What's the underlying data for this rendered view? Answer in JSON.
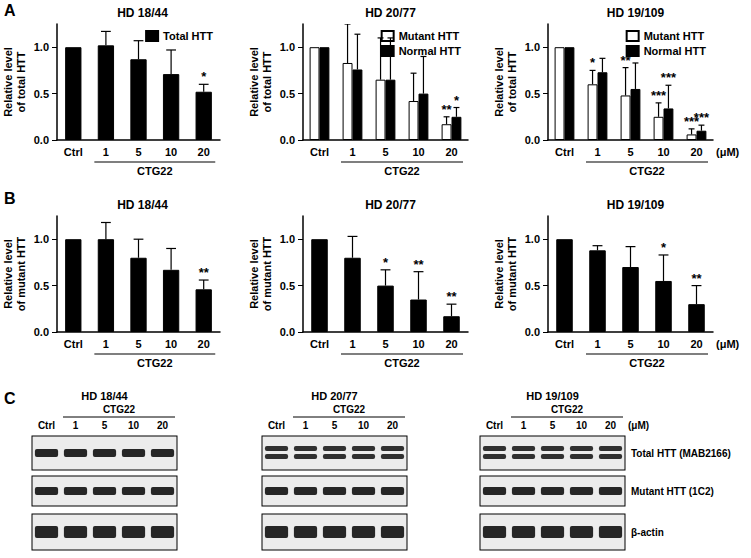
{
  "panel_labels": [
    "A",
    "B",
    "C"
  ],
  "chart_data": [
    {
      "type": "bar",
      "title": "HD 18/44",
      "ylabel": "Relative level\nof total HTT",
      "xlabel": "CTG22",
      "categories": [
        "Ctrl",
        "1",
        "5",
        "10",
        "20"
      ],
      "series": [
        {
          "name": "Total HTT",
          "color": "#000000",
          "values": [
            1.0,
            1.02,
            0.87,
            0.71,
            0.52
          ],
          "errors": [
            null,
            0.15,
            0.2,
            0.26,
            0.08
          ],
          "significance": [
            null,
            null,
            null,
            null,
            "*"
          ]
        }
      ],
      "ylim": [
        0,
        1.25
      ],
      "yticks": [
        {
          "value": 0,
          "label": "0.0"
        },
        {
          "value": 0.5,
          "label": "0.5"
        },
        {
          "value": 1,
          "label": "1.0"
        }
      ],
      "grid": false,
      "legend": "upper right"
    },
    {
      "type": "bar",
      "title": "HD 20/77",
      "ylabel": "Relative level\nof total HTT",
      "xlabel": "CTG22",
      "categories": [
        "Ctrl",
        "1",
        "5",
        "10",
        "20"
      ],
      "series": [
        {
          "name": "Mutant HTT",
          "color": "#ffffff",
          "values": [
            1.0,
            0.83,
            0.65,
            0.42,
            0.17
          ],
          "errors": [
            null,
            0.42,
            0.45,
            0.3,
            0.08
          ],
          "significance": [
            null,
            null,
            null,
            null,
            "**"
          ]
        },
        {
          "name": "Normal HTT",
          "color": "#000000",
          "values": [
            1.0,
            0.76,
            0.65,
            0.5,
            0.25
          ],
          "errors": [
            null,
            0.38,
            0.45,
            0.4,
            0.1
          ],
          "significance": [
            null,
            null,
            null,
            null,
            "*"
          ]
        }
      ],
      "ylim": [
        0,
        1.25
      ],
      "yticks": [
        {
          "value": 0,
          "label": "0.0"
        },
        {
          "value": 0.5,
          "label": "0.5"
        },
        {
          "value": 1,
          "label": "1.0"
        }
      ],
      "grid": false,
      "legend": "upper right"
    },
    {
      "type": "bar",
      "title": "HD 19/109",
      "ylabel": "Relative level\nof total HTT",
      "xlabel": "CTG22",
      "categories": [
        "Ctrl",
        "1",
        "5",
        "10",
        "20"
      ],
      "series": [
        {
          "name": "Mutant HTT",
          "color": "#ffffff",
          "values": [
            1.0,
            0.6,
            0.48,
            0.25,
            0.06
          ],
          "errors": [
            null,
            0.15,
            0.3,
            0.15,
            0.06
          ],
          "significance": [
            null,
            "*",
            "**",
            "***",
            "***"
          ]
        },
        {
          "name": "Normal HTT",
          "color": "#000000",
          "values": [
            1.0,
            0.73,
            0.55,
            0.34,
            0.1
          ],
          "errors": [
            null,
            0.15,
            0.28,
            0.25,
            0.06
          ],
          "significance": [
            null,
            null,
            "*",
            "***",
            "***"
          ]
        }
      ],
      "ylim": [
        0,
        1.25
      ],
      "yticks": [
        {
          "value": 0,
          "label": "0.0"
        },
        {
          "value": 0.5,
          "label": "0.5"
        },
        {
          "value": 1,
          "label": "1.0"
        }
      ],
      "grid": false,
      "legend": "upper right",
      "annotations": [
        "(μM)"
      ]
    },
    {
      "type": "bar",
      "title": "HD 18/44",
      "ylabel": "Relative level\nof mutant HTT",
      "xlabel": "CTG22",
      "categories": [
        "Ctrl",
        "1",
        "5",
        "10",
        "20"
      ],
      "series": [
        {
          "color": "#000000",
          "values": [
            1.0,
            1.0,
            0.8,
            0.67,
            0.46
          ],
          "errors": [
            null,
            0.18,
            0.2,
            0.23,
            0.1
          ],
          "significance": [
            null,
            null,
            null,
            null,
            "**"
          ]
        }
      ],
      "ylim": [
        0,
        1.25
      ],
      "yticks": [
        {
          "value": 0,
          "label": "0.0"
        },
        {
          "value": 0.5,
          "label": "0.5"
        },
        {
          "value": 1,
          "label": "1.0"
        }
      ],
      "grid": false
    },
    {
      "type": "bar",
      "title": "HD 20/77",
      "ylabel": "Relative level\nof mutant HTT",
      "xlabel": "CTG22",
      "categories": [
        "Ctrl",
        "1",
        "5",
        "10",
        "20"
      ],
      "series": [
        {
          "color": "#000000",
          "values": [
            1.0,
            0.8,
            0.5,
            0.35,
            0.17
          ],
          "errors": [
            null,
            0.23,
            0.17,
            0.3,
            0.13
          ],
          "significance": [
            null,
            null,
            "*",
            "**",
            "**"
          ]
        }
      ],
      "ylim": [
        0,
        1.25
      ],
      "yticks": [
        {
          "value": 0,
          "label": "0.0"
        },
        {
          "value": 0.5,
          "label": "0.5"
        },
        {
          "value": 1,
          "label": "1.0"
        }
      ],
      "grid": false
    },
    {
      "type": "bar",
      "title": "HD 19/109",
      "ylabel": "Relative level\nof mutant HTT",
      "xlabel": "CTG22",
      "categories": [
        "Ctrl",
        "1",
        "5",
        "10",
        "20"
      ],
      "series": [
        {
          "color": "#000000",
          "values": [
            1.0,
            0.88,
            0.7,
            0.55,
            0.3
          ],
          "errors": [
            null,
            0.05,
            0.22,
            0.28,
            0.2
          ],
          "significance": [
            null,
            null,
            null,
            "*",
            "**"
          ]
        }
      ],
      "ylim": [
        0,
        1.25
      ],
      "yticks": [
        {
          "value": 0,
          "label": "0.0"
        },
        {
          "value": 0.5,
          "label": "0.5"
        },
        {
          "value": 1,
          "label": "1.0"
        }
      ],
      "grid": false,
      "annotations": [
        "(μM)"
      ]
    }
  ],
  "blots": {
    "treatment": "CTG22",
    "unit": "(μM)",
    "cell_lines": [
      "HD 18/44",
      "HD 20/77",
      "HD 19/109"
    ],
    "lanes": [
      "Ctrl",
      "1",
      "5",
      "10",
      "20"
    ],
    "rows": [
      "Total HTT (MAB2166)",
      "Mutant HTT (1C2)",
      "β-actin"
    ]
  }
}
